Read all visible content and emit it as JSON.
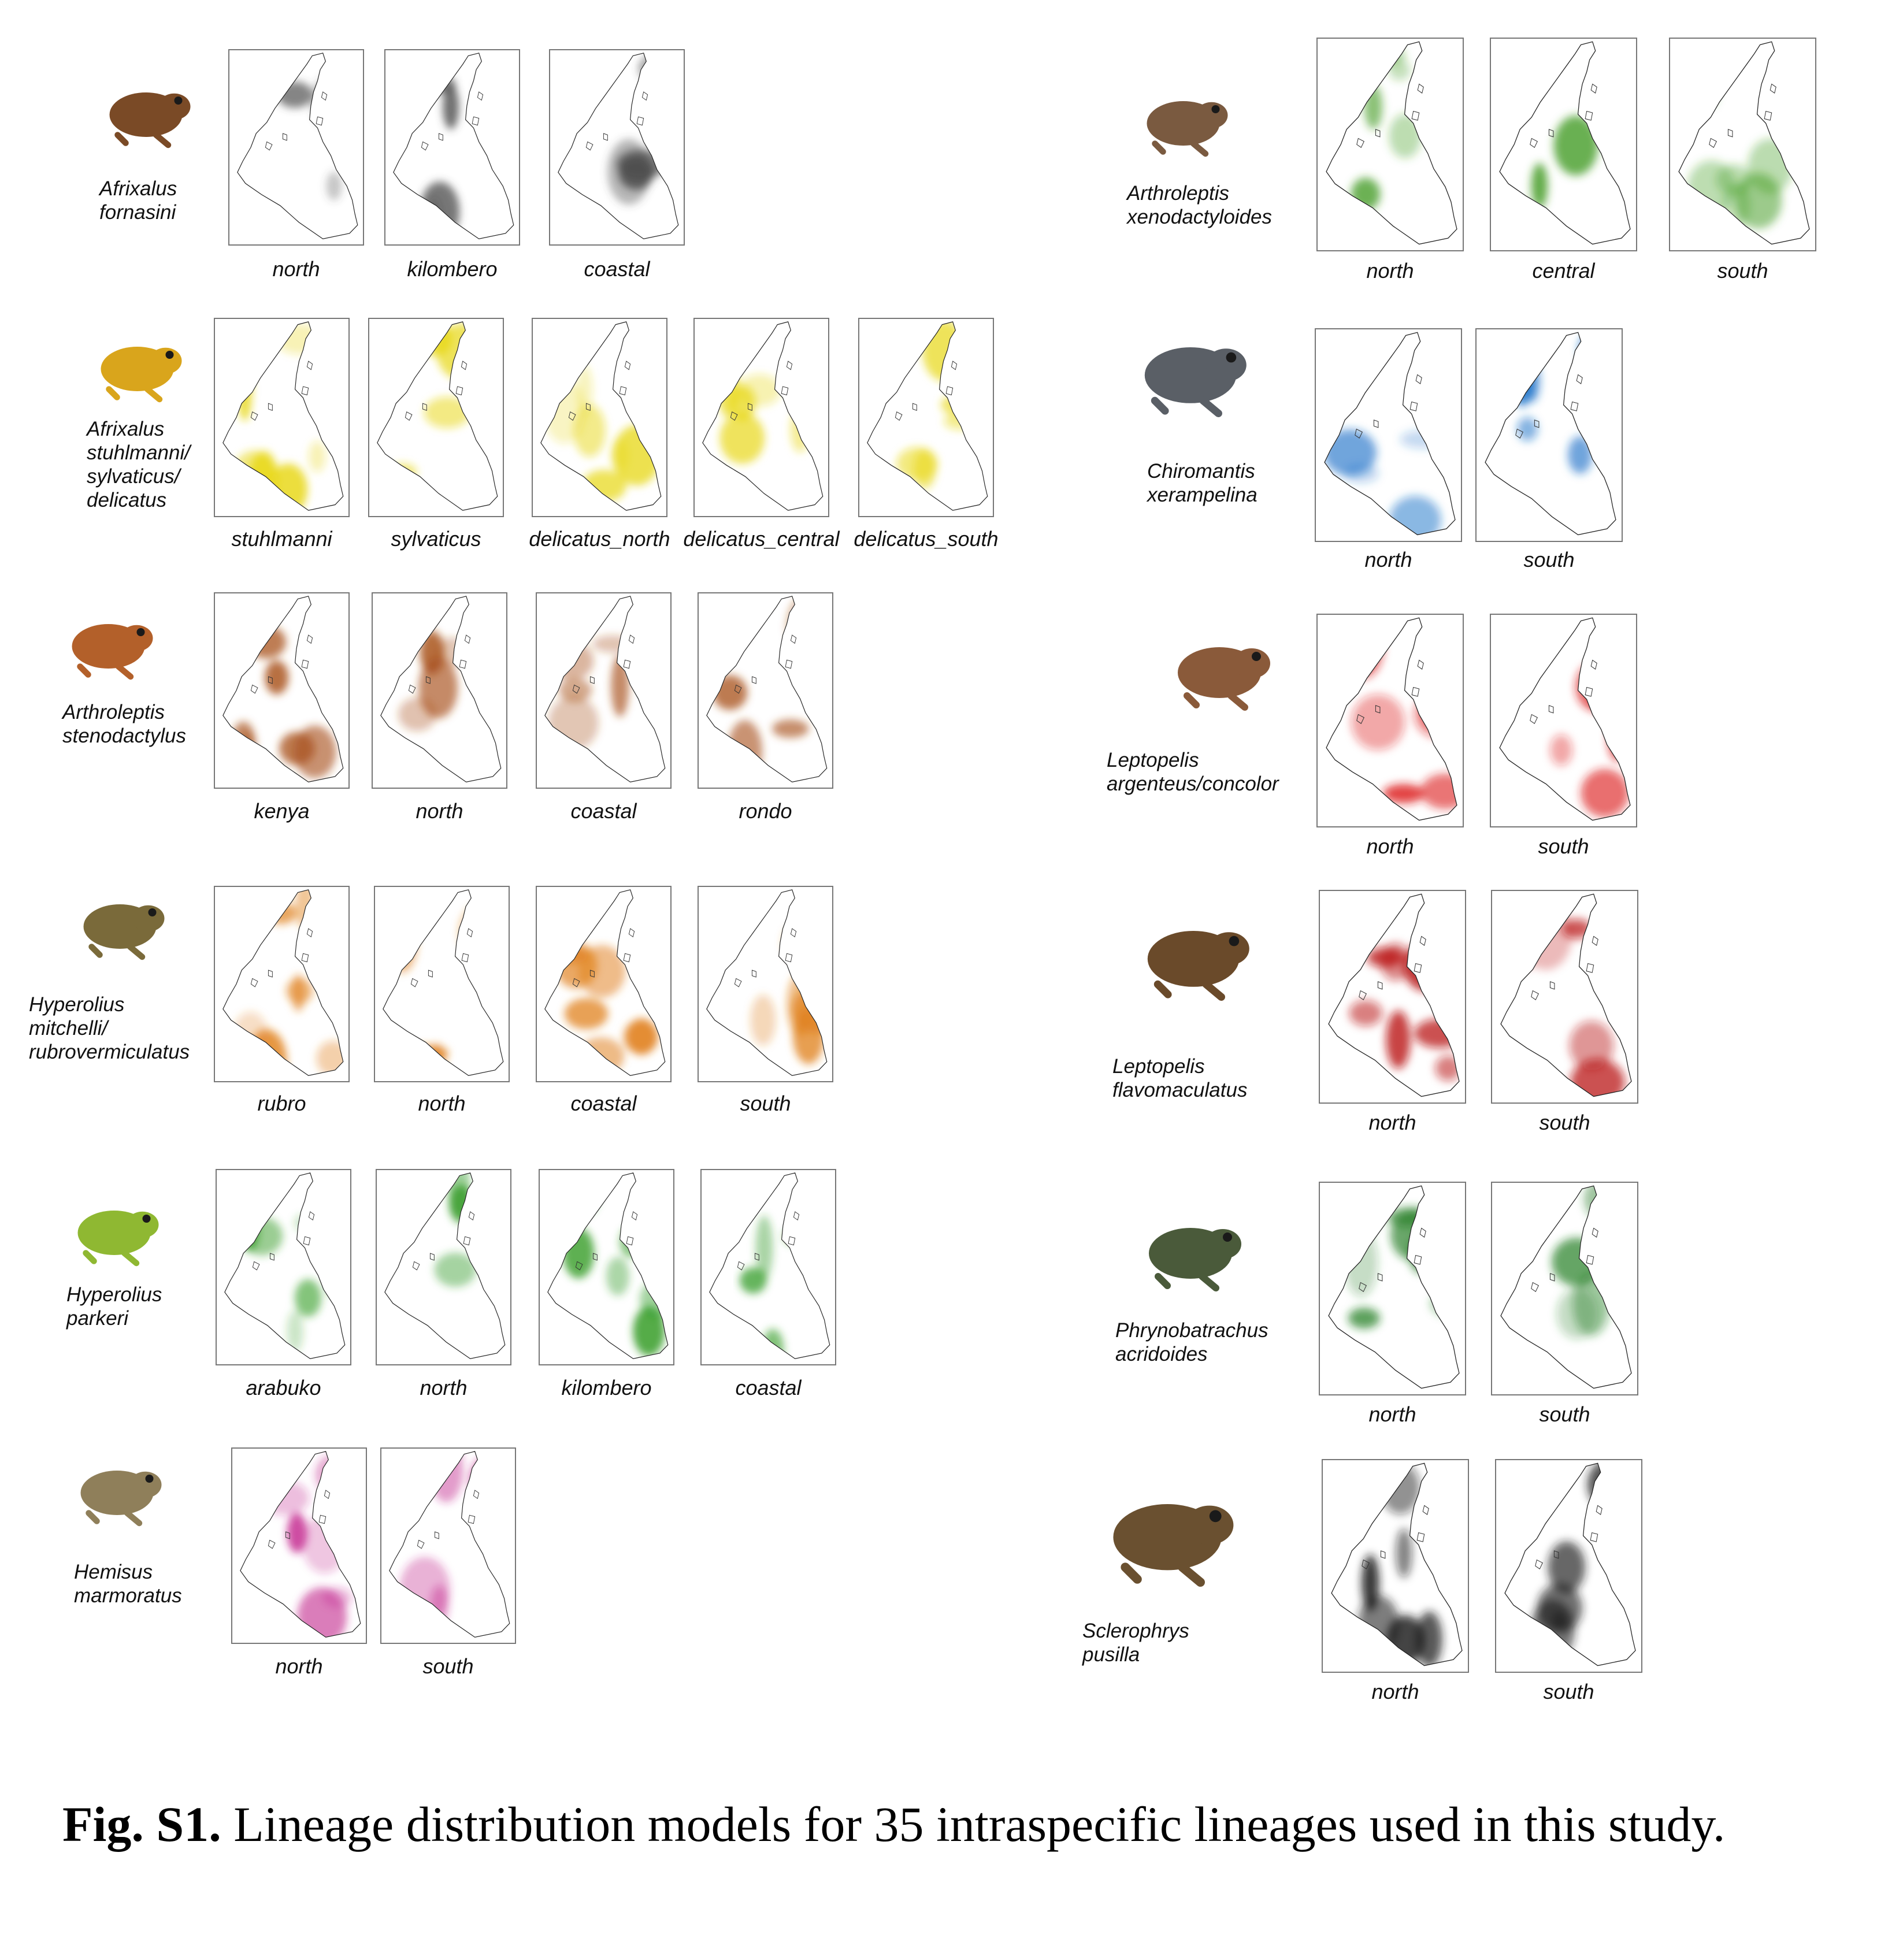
{
  "caption": {
    "label": "Fig. S1.",
    "text": "Lineage distribution models for 35 intraspecific lineages used in this study."
  },
  "left_column": [
    {
      "name": "Afrixalus\nfornasini",
      "color": "#4a4a4a",
      "frog_color": "#7a4a26",
      "lineages": [
        "north",
        "kilombero",
        "coastal"
      ]
    },
    {
      "name": "Afrixalus\nstuhlmanni/\nsylvaticus/\ndelicatus",
      "color": "#e8d81a",
      "frog_color": "#d9a51c",
      "lineages": [
        "stuhlmanni",
        "sylvaticus",
        "delicatus_north",
        "delicatus_central",
        "delicatus_south"
      ]
    },
    {
      "name": "Arthroleptis\nstenodactylus",
      "color": "#a8511c",
      "frog_color": "#b3602a",
      "lineages": [
        "kenya",
        "north",
        "coastal",
        "rondo"
      ]
    },
    {
      "name": "Hyperolius\nmitchelli/\nrubrovermiculatus",
      "color": "#e0801c",
      "frog_color": "#7a6a3a",
      "lineages": [
        "rubro",
        "north",
        "coastal",
        "south"
      ]
    },
    {
      "name": "Hyperolius\nparkeri",
      "color": "#2f9a22",
      "frog_color": "#8fb832",
      "lineages": [
        "arabuko",
        "north",
        "kilombero",
        "coastal"
      ]
    },
    {
      "name": "Hemisus\nmarmoratus",
      "color": "#c2238c",
      "frog_color": "#8f7f5a",
      "lineages": [
        "north",
        "south"
      ]
    }
  ],
  "right_column": [
    {
      "name": "Arthroleptis\nxenodactyloides",
      "color": "#3f9a1e",
      "frog_color": "#7a5a40",
      "lineages": [
        "north",
        "central",
        "south"
      ]
    },
    {
      "name": "Chiromantis\nxerampelina",
      "color": "#1a70c8",
      "frog_color": "#5a5f66",
      "lineages": [
        "north",
        "south"
      ]
    },
    {
      "name": "Leptopelis\nargenteus/concolor",
      "color": "#dc1c1c",
      "frog_color": "#8a5a3a",
      "lineages": [
        "north",
        "south"
      ]
    },
    {
      "name": "Leptopelis\nflavomaculatus",
      "color": "#b81414",
      "frog_color": "#6a4a2a",
      "lineages": [
        "north",
        "south"
      ]
    },
    {
      "name": "Phrynobatrachus\nacridoides",
      "color": "#1f7a1f",
      "frog_color": "#4a5a3a",
      "lineages": [
        "north",
        "south"
      ]
    },
    {
      "name": "Sclerophrys pusilla",
      "color": "#1a1a1a",
      "frog_color": "#6a5030",
      "lineages": [
        "north",
        "south"
      ]
    }
  ]
}
